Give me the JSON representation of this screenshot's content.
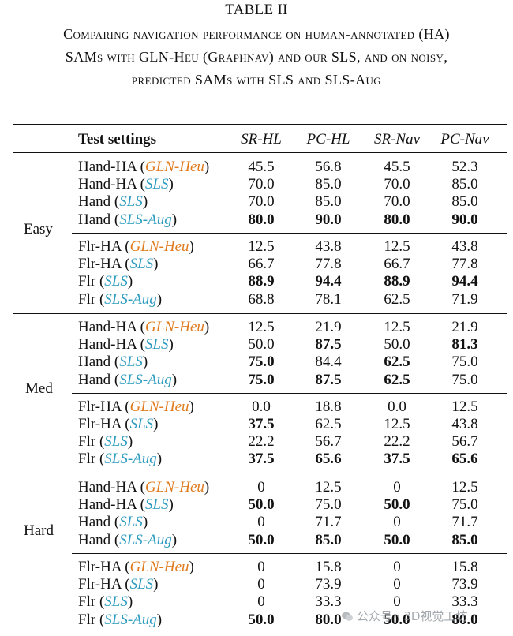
{
  "title": "TABLE II",
  "caption": {
    "line1": "Comparing navigation performance on human-annotated (HA)",
    "line2": "SAMs with GLN-Heu (Graphnav) and our SLS, and on noisy,",
    "line3": "predicted SAMs with SLS and SLS-Aug"
  },
  "header": {
    "settings": "Test settings",
    "c1": "SR-HL",
    "c2": "PC-HL",
    "c3": "SR-Nav",
    "c4": "PC-Nav"
  },
  "groups": [
    {
      "label": "Easy"
    },
    {
      "label": "Med"
    },
    {
      "label": "Hard"
    }
  ],
  "rows": [
    {
      "pre": "Hand-HA",
      "method": "GLN-Heu",
      "v": [
        "45.5",
        "56.8",
        "45.5",
        "52.3"
      ]
    },
    {
      "pre": "Hand-HA",
      "method": "SLS",
      "v": [
        "70.0",
        "85.0",
        "70.0",
        "85.0"
      ]
    },
    {
      "pre": "Hand",
      "method": "SLS",
      "v": [
        "70.0",
        "85.0",
        "70.0",
        "85.0"
      ]
    },
    {
      "pre": "Hand",
      "method": "SLS-Aug",
      "v": [
        "80.0",
        "90.0",
        "80.0",
        "90.0"
      ]
    },
    {
      "pre": "Flr-HA",
      "method": "GLN-Heu",
      "v": [
        "12.5",
        "43.8",
        "12.5",
        "43.8"
      ]
    },
    {
      "pre": "Flr-HA",
      "method": "SLS",
      "v": [
        "66.7",
        "77.8",
        "66.7",
        "77.8"
      ]
    },
    {
      "pre": "Flr",
      "method": "SLS",
      "v": [
        "88.9",
        "94.4",
        "88.9",
        "94.4"
      ]
    },
    {
      "pre": "Flr",
      "method": "SLS-Aug",
      "v": [
        "68.8",
        "78.1",
        "62.5",
        "71.9"
      ]
    },
    {
      "pre": "Hand-HA",
      "method": "GLN-Heu",
      "v": [
        "12.5",
        "21.9",
        "12.5",
        "21.9"
      ]
    },
    {
      "pre": "Hand-HA",
      "method": "SLS",
      "v": [
        "50.0",
        "87.5",
        "50.0",
        "81.3"
      ]
    },
    {
      "pre": "Hand",
      "method": "SLS",
      "v": [
        "75.0",
        "84.4",
        "62.5",
        "75.0"
      ]
    },
    {
      "pre": "Hand",
      "method": "SLS-Aug",
      "v": [
        "75.0",
        "87.5",
        "62.5",
        "75.0"
      ]
    },
    {
      "pre": "Flr-HA",
      "method": "GLN-Heu",
      "v": [
        "0.0",
        "18.8",
        "0.0",
        "12.5"
      ]
    },
    {
      "pre": "Flr-HA",
      "method": "SLS",
      "v": [
        "37.5",
        "62.5",
        "12.5",
        "43.8"
      ]
    },
    {
      "pre": "Flr",
      "method": "SLS",
      "v": [
        "22.2",
        "56.7",
        "22.2",
        "56.7"
      ]
    },
    {
      "pre": "Flr",
      "method": "SLS-Aug",
      "v": [
        "37.5",
        "65.6",
        "37.5",
        "65.6"
      ]
    },
    {
      "pre": "Hand-HA",
      "method": "GLN-Heu",
      "v": [
        "0",
        "12.5",
        "0",
        "12.5"
      ]
    },
    {
      "pre": "Hand-HA",
      "method": "SLS",
      "v": [
        "50.0",
        "75.0",
        "50.0",
        "75.0"
      ]
    },
    {
      "pre": "Hand",
      "method": "SLS",
      "v": [
        "0",
        "71.7",
        "0",
        "71.7"
      ]
    },
    {
      "pre": "Hand",
      "method": "SLS-Aug",
      "v": [
        "50.0",
        "85.0",
        "50.0",
        "85.0"
      ]
    },
    {
      "pre": "Flr-HA",
      "method": "GLN-Heu",
      "v": [
        "0",
        "15.8",
        "0",
        "15.8"
      ]
    },
    {
      "pre": "Flr-HA",
      "method": "SLS",
      "v": [
        "0",
        "73.9",
        "0",
        "73.9"
      ]
    },
    {
      "pre": "Flr",
      "method": "SLS",
      "v": [
        "0",
        "33.3",
        "0",
        "33.3"
      ]
    },
    {
      "pre": "Flr",
      "method": "SLS-Aug",
      "v": [
        "50.0",
        "80.0",
        "50.0",
        "80.0"
      ]
    }
  ],
  "watermark": "公众号 · 3D视觉工坊",
  "colors": {
    "gln": "#e07b1e",
    "sls": "#2b9bbf"
  }
}
